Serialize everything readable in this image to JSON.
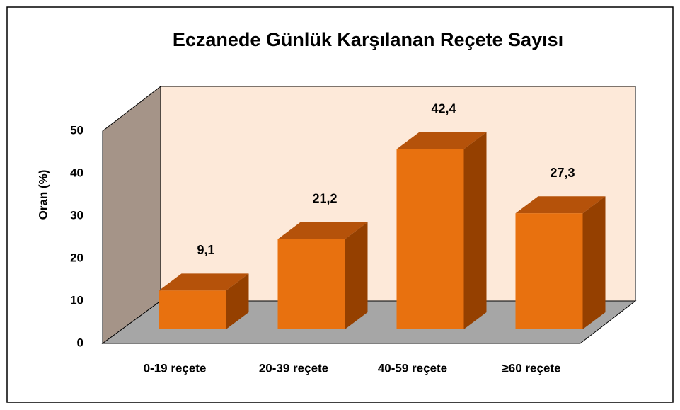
{
  "chart_data": {
    "type": "bar3d",
    "title": "Eczanede Günlük Karşılanan Reçete Sayısı",
    "y_label": "Oran (%)",
    "categories": [
      "0-19 reçete",
      "20-39 reçete",
      "40-59 reçete",
      "≥60 reçete"
    ],
    "values": [
      9.1,
      21.2,
      42.4,
      27.3
    ],
    "value_labels": [
      "9,1",
      "21,2",
      "42,4",
      "27,3"
    ],
    "color": "#e8710f",
    "ylim": [
      0,
      50
    ],
    "yticks": [
      0,
      10,
      20,
      30,
      40,
      50
    ]
  }
}
